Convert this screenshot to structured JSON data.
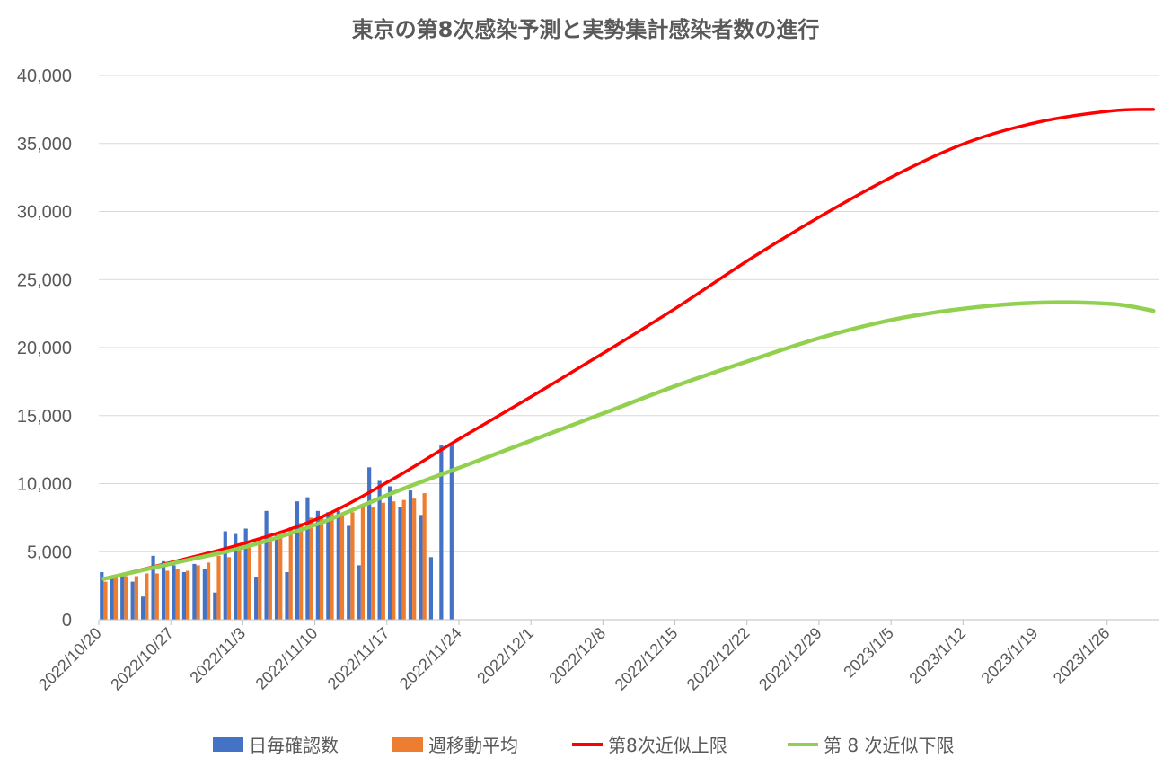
{
  "chart_data": {
    "type": "bar",
    "title": "東京の第8次感染予測と実勢集計感染者数の進行",
    "xlabel": "",
    "ylabel": "",
    "ylim": [
      0,
      40000
    ],
    "yticks": [
      0,
      5000,
      10000,
      15000,
      20000,
      25000,
      30000,
      35000,
      40000
    ],
    "ytick_labels": [
      "0",
      "5,000",
      "10,000",
      "15,000",
      "20,000",
      "25,000",
      "30,000",
      "35,000",
      "40,000"
    ],
    "x_start": "2022/10/20",
    "x_days": 103,
    "xtick_labels": [
      "2022/10/20",
      "2022/10/27",
      "2022/11/3",
      "2022/11/10",
      "2022/11/17",
      "2022/11/24",
      "2022/12/1",
      "2022/12/8",
      "2022/12/15",
      "2022/12/22",
      "2022/12/29",
      "2023/1/5",
      "2023/1/12",
      "2023/1/19",
      "2023/1/26"
    ],
    "grid": true,
    "legend_position": "bottom",
    "series": [
      {
        "name": "日毎確認数",
        "kind": "bar",
        "color": "#4472c4",
        "values": [
          3500,
          3000,
          3300,
          2800,
          1700,
          4700,
          4300,
          4000,
          3500,
          4100,
          3700,
          2000,
          6500,
          6300,
          6700,
          3100,
          8000,
          6200,
          3500,
          8700,
          9000,
          8000,
          7900,
          8000,
          6900,
          4000,
          11200,
          10200,
          9800,
          8300,
          9500,
          7700,
          4600,
          12800,
          12800
        ]
      },
      {
        "name": "週移動平均",
        "kind": "bar",
        "color": "#ed7d31",
        "values": [
          2800,
          3100,
          3200,
          3200,
          3400,
          3400,
          3600,
          3700,
          3600,
          4000,
          4200,
          4700,
          4600,
          5200,
          5500,
          5900,
          6100,
          6400,
          6800,
          7100,
          7500,
          7600,
          7800,
          7600,
          7900,
          8500,
          8300,
          8600,
          8700,
          8800,
          8900,
          9300
        ]
      },
      {
        "name": "第8次近似上限",
        "kind": "line",
        "color": "#ff0000",
        "points": [
          [
            0,
            3000
          ],
          [
            7,
            4300
          ],
          [
            14,
            5700
          ],
          [
            21,
            7500
          ],
          [
            28,
            10300
          ],
          [
            35,
            13500
          ],
          [
            42,
            16600
          ],
          [
            49,
            19800
          ],
          [
            56,
            23100
          ],
          [
            63,
            26600
          ],
          [
            70,
            29800
          ],
          [
            77,
            32700
          ],
          [
            84,
            35100
          ],
          [
            91,
            36600
          ],
          [
            98,
            37400
          ],
          [
            102,
            37500
          ]
        ]
      },
      {
        "name": "第 8 次近似下限",
        "kind": "line",
        "color": "#92d050",
        "points": [
          [
            0,
            3000
          ],
          [
            7,
            4200
          ],
          [
            14,
            5400
          ],
          [
            21,
            7100
          ],
          [
            28,
            9300
          ],
          [
            35,
            11300
          ],
          [
            42,
            13300
          ],
          [
            49,
            15300
          ],
          [
            56,
            17300
          ],
          [
            63,
            19100
          ],
          [
            70,
            20800
          ],
          [
            77,
            22100
          ],
          [
            84,
            22900
          ],
          [
            91,
            23300
          ],
          [
            98,
            23200
          ],
          [
            102,
            22700
          ]
        ]
      }
    ]
  }
}
